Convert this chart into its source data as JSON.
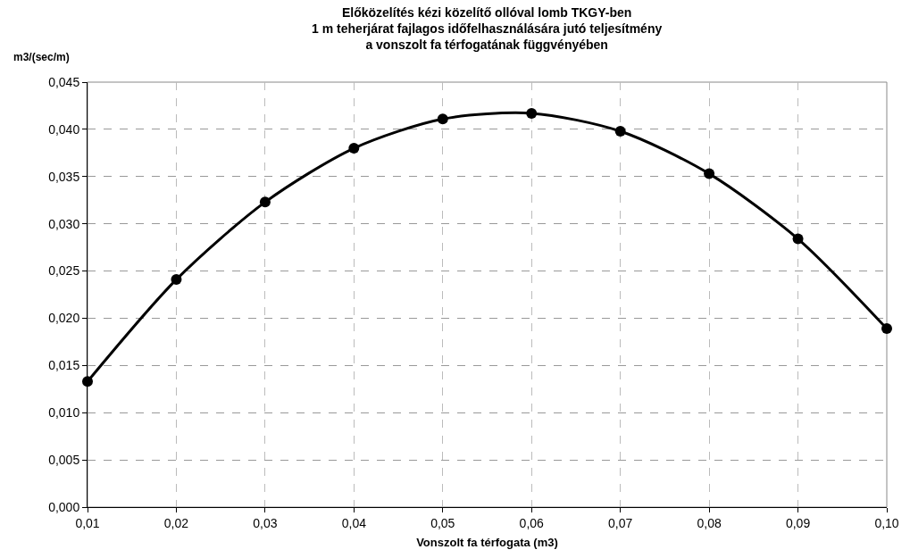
{
  "chart_data": {
    "type": "line",
    "title": "Előközelítés kézi közelítő ollóval lomb TKGY-ben\n1 m teherjárat fajlagos időfelhasználására jutó teljesítmény\na vonszolt fa térfogatának függvényében",
    "xlabel": "Vonszolt fa térfogata (m3)",
    "ylabel": "m3/(sec/m)",
    "x": [
      0.01,
      0.02,
      0.03,
      0.04,
      0.05,
      0.06,
      0.07,
      0.08,
      0.09,
      0.1
    ],
    "series": [
      {
        "color": "#000000",
        "values": [
          0.0133,
          0.0241,
          0.0323,
          0.038,
          0.0411,
          0.0417,
          0.0398,
          0.0353,
          0.0284,
          0.0189
        ]
      }
    ],
    "xlim": [
      0.01,
      0.1
    ],
    "xticks": [
      {
        "value": 0.01,
        "label": "0,01"
      },
      {
        "value": 0.02,
        "label": "0,02"
      },
      {
        "value": 0.03,
        "label": "0,03"
      },
      {
        "value": 0.04,
        "label": "0,04"
      },
      {
        "value": 0.05,
        "label": "0,05"
      },
      {
        "value": 0.06,
        "label": "0,06"
      },
      {
        "value": 0.07,
        "label": "0,07"
      },
      {
        "value": 0.08,
        "label": "0,08"
      },
      {
        "value": 0.09,
        "label": "0,09"
      },
      {
        "value": 0.1,
        "label": "0,10"
      }
    ],
    "ylim": [
      0,
      0.045
    ],
    "yticks": [
      {
        "value": 0,
        "label": "0,000"
      },
      {
        "value": 0.005,
        "label": "0,005"
      },
      {
        "value": 0.01,
        "label": "0,010"
      },
      {
        "value": 0.015,
        "label": "0,015"
      },
      {
        "value": 0.02,
        "label": "0,020"
      },
      {
        "value": 0.025,
        "label": "0,025"
      },
      {
        "value": 0.03,
        "label": "0,030"
      },
      {
        "value": 0.035,
        "label": "0,035"
      },
      {
        "value": 0.04,
        "label": "0,040"
      },
      {
        "value": 0.045,
        "label": "0,045"
      }
    ],
    "grid": true,
    "marker": "circle",
    "line_style": "solid"
  }
}
